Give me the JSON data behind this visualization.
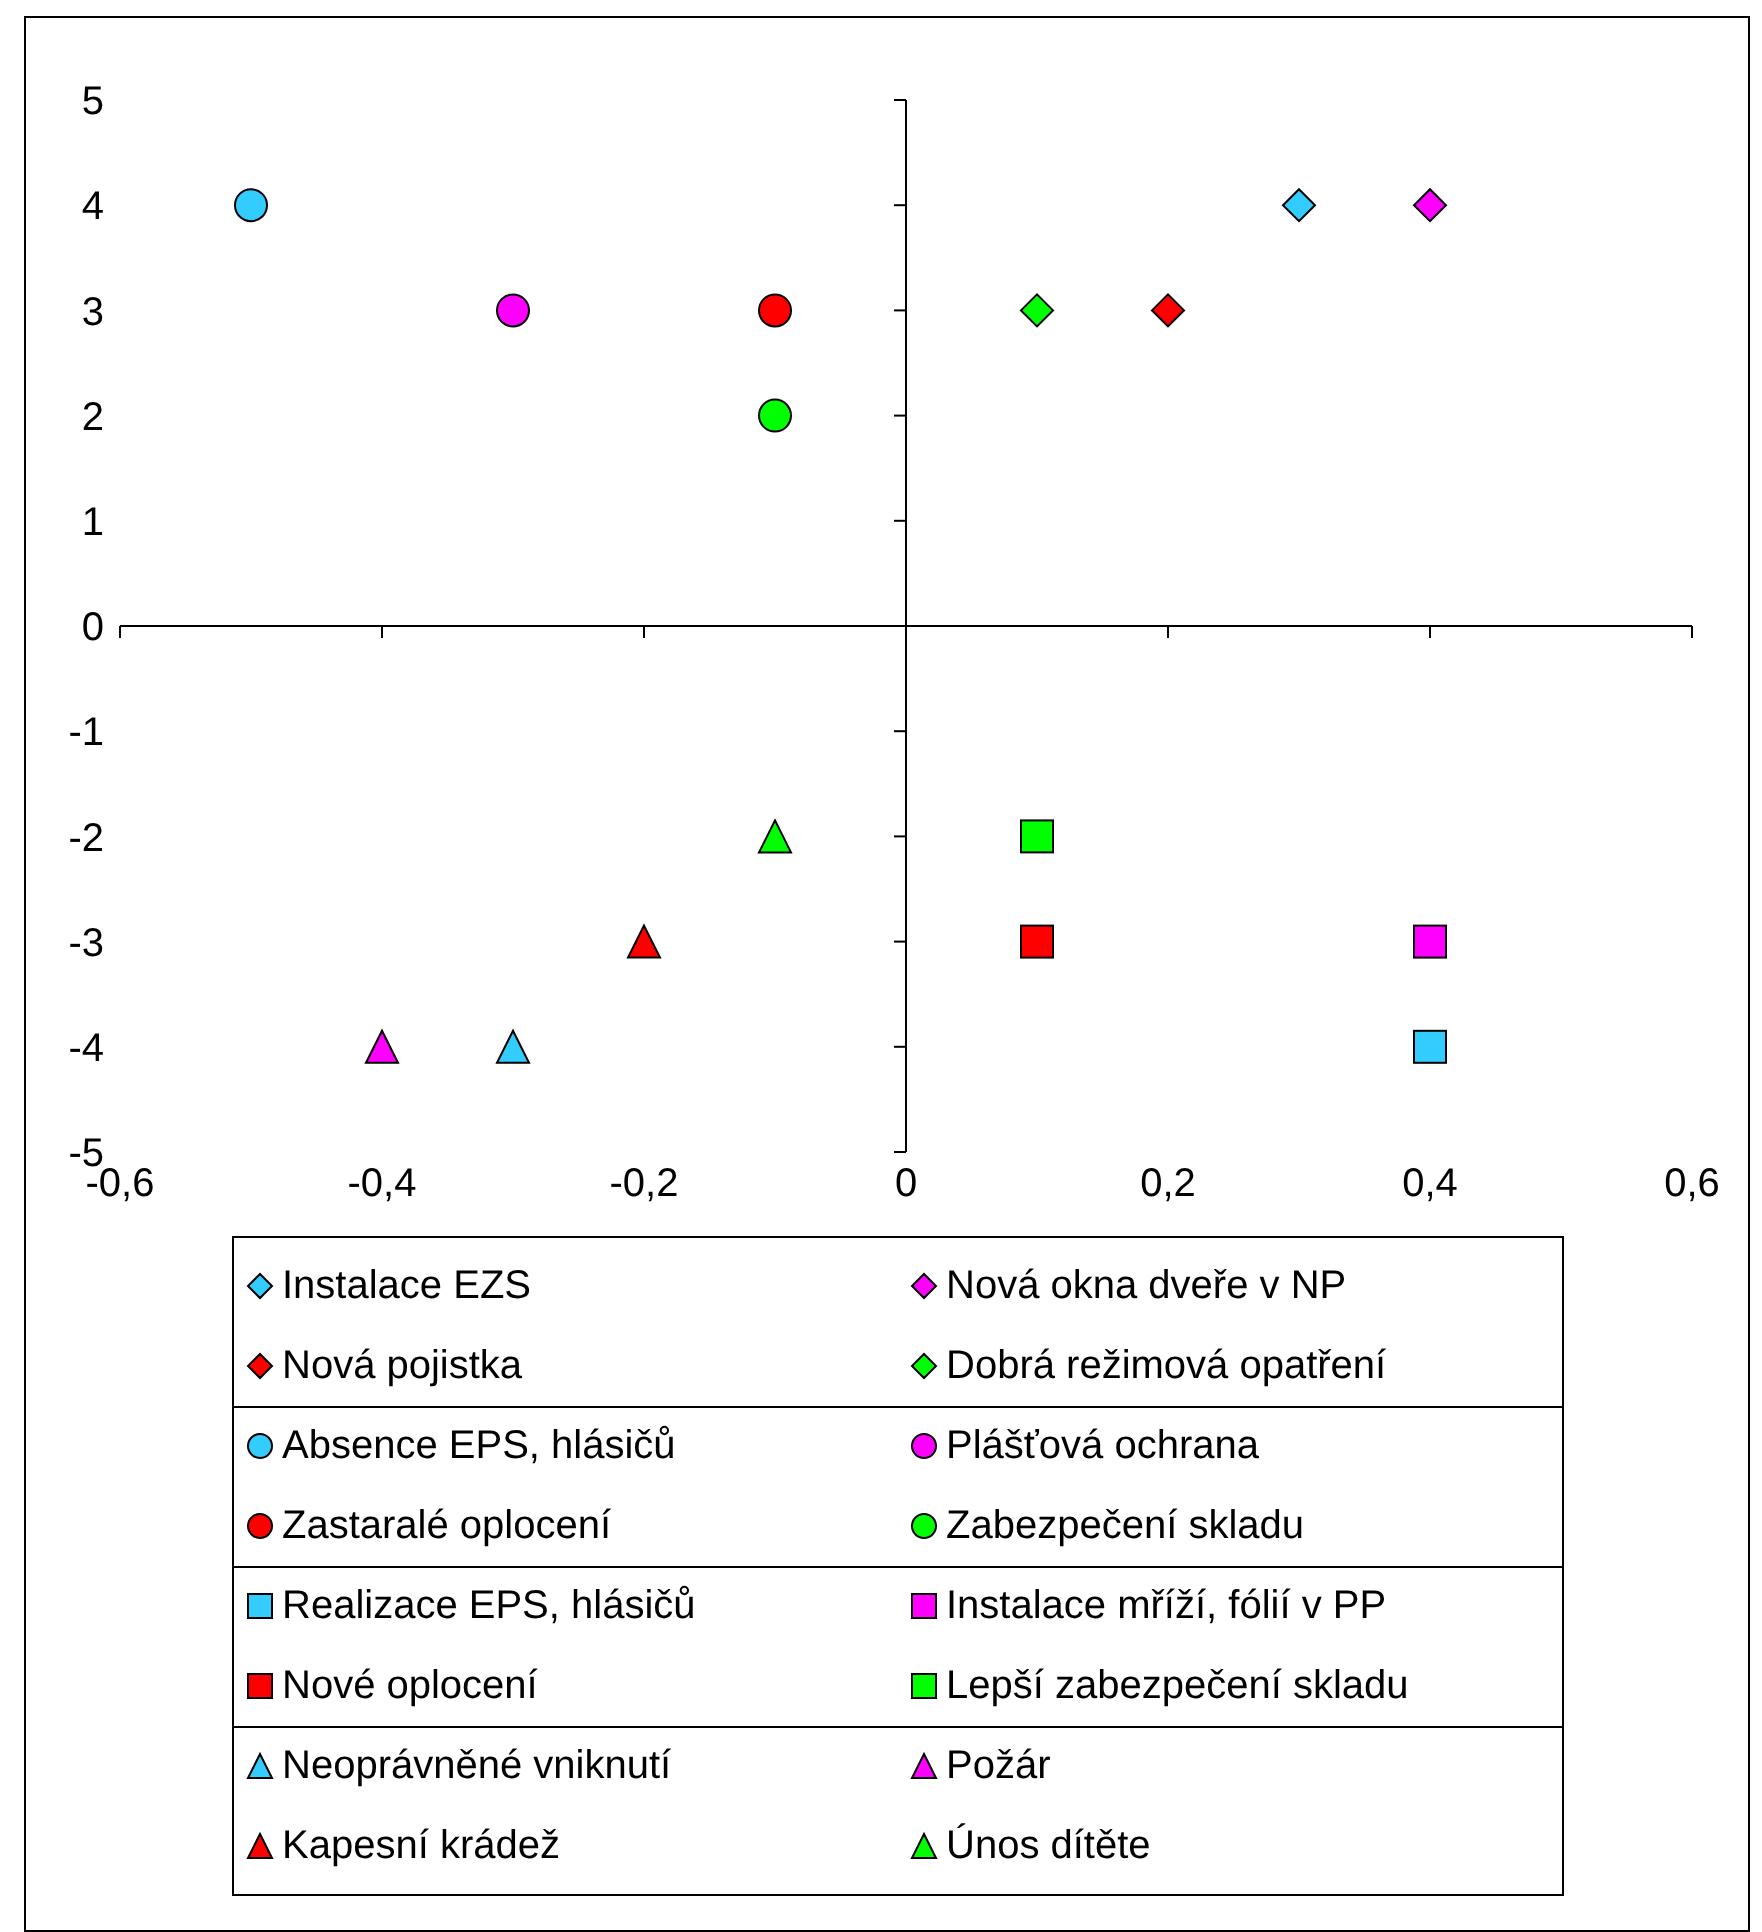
{
  "chart_data": {
    "type": "scatter",
    "legend": "bottom",
    "xlim": [
      -0.6,
      0.6
    ],
    "xticks": [
      {
        "value": -0.6,
        "label": "-0,6"
      },
      {
        "value": -0.4,
        "label": "-0,4"
      },
      {
        "value": -0.2,
        "label": "-0,2"
      },
      0,
      {
        "value": 0.2,
        "label": "0,2"
      },
      {
        "value": 0.4,
        "label": "0,4"
      },
      {
        "value": 0.6,
        "label": "0,6"
      }
    ],
    "ylim": [
      -5,
      5
    ],
    "yticks": [
      -5,
      -4,
      -3,
      -2,
      -1,
      0,
      1,
      2,
      3,
      4,
      5
    ],
    "series": [
      {
        "name": "Instalace EZS",
        "color": "#33ccff",
        "marker": "diamond",
        "x": [
          0.3
        ],
        "values": [
          4
        ]
      },
      {
        "name": "Nová okna dveře v NP",
        "color": "#ff00ff",
        "marker": "diamond",
        "x": [
          0.4
        ],
        "values": [
          4
        ]
      },
      {
        "name": "Nová pojistka",
        "color": "#ff0000",
        "marker": "diamond",
        "x": [
          0.2
        ],
        "values": [
          3
        ]
      },
      {
        "name": "Dobrá režimová opatření",
        "color": "#00ff00",
        "marker": "diamond",
        "x": [
          0.1
        ],
        "values": [
          3
        ]
      },
      {
        "name": "Absence EPS, hlásičů",
        "color": "#33ccff",
        "marker": "circle",
        "x": [
          -0.5
        ],
        "values": [
          4
        ]
      },
      {
        "name": "Plášťová ochrana",
        "color": "#ff00ff",
        "marker": "circle",
        "x": [
          -0.3
        ],
        "values": [
          3
        ]
      },
      {
        "name": "Zastaralé oplocení",
        "color": "#ff0000",
        "marker": "circle",
        "x": [
          -0.1
        ],
        "values": [
          3
        ]
      },
      {
        "name": "Zabezpečení skladu",
        "color": "#00ff00",
        "marker": "circle",
        "x": [
          -0.1
        ],
        "values": [
          2
        ]
      },
      {
        "name": "Realizace EPS, hlásičů",
        "color": "#33ccff",
        "marker": "square",
        "x": [
          0.4
        ],
        "values": [
          -4
        ]
      },
      {
        "name": "Instalace mříží, fólií v PP",
        "color": "#ff00ff",
        "marker": "square",
        "x": [
          0.4
        ],
        "values": [
          -3
        ]
      },
      {
        "name": "Nové oplocení",
        "color": "#ff0000",
        "marker": "square",
        "x": [
          0.1
        ],
        "values": [
          -3
        ]
      },
      {
        "name": "Lepší zabezpečení skladu",
        "color": "#00ff00",
        "marker": "square",
        "x": [
          0.1
        ],
        "values": [
          -2
        ]
      },
      {
        "name": "Neoprávněné vniknutí",
        "color": "#33ccff",
        "marker": "triangle",
        "x": [
          -0.3
        ],
        "values": [
          -4
        ]
      },
      {
        "name": "Požár",
        "color": "#ff00ff",
        "marker": "triangle",
        "x": [
          -0.4
        ],
        "values": [
          -4
        ]
      },
      {
        "name": "Kapesní krádež",
        "color": "#ff0000",
        "marker": "triangle",
        "x": [
          -0.2
        ],
        "values": [
          -3
        ]
      },
      {
        "name": "Únos dítěte",
        "color": "#00ff00",
        "marker": "triangle",
        "x": [
          -0.1
        ],
        "values": [
          -2
        ]
      }
    ]
  }
}
